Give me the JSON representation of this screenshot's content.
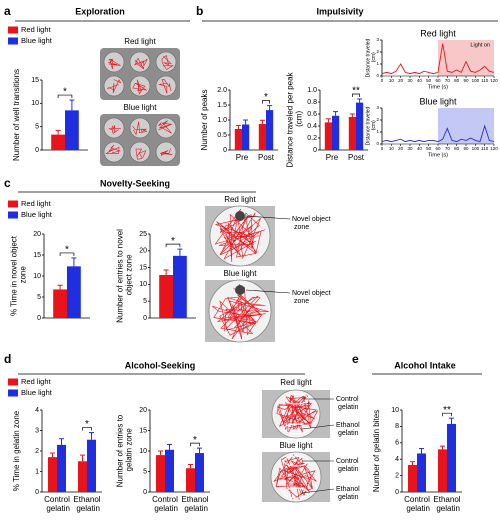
{
  "panels": [
    {
      "letter": "a",
      "title": "Exploration"
    },
    {
      "letter": "b",
      "title": "Impulsivity"
    },
    {
      "letter": "c",
      "title": "Novelty-Seeking"
    },
    {
      "letter": "d",
      "title": "Alcohol-Seeking"
    },
    {
      "letter": "e",
      "title": "Alcohol Intake"
    }
  ],
  "photos": [
    {
      "title": "Red light"
    },
    {
      "title": "Blue light"
    },
    {
      "title": "Red light",
      "labels": [
        "Novel object zone"
      ]
    },
    {
      "title": "Blue light",
      "labels": [
        "Novel object zone"
      ]
    },
    {
      "title": "Red light",
      "labels": [
        "Control gelatin",
        "Ethanol gelatin"
      ]
    },
    {
      "title": "Blue light",
      "labels": [
        "Control gelatin",
        "Ethanol gelatin"
      ]
    }
  ],
  "chart_data": [
    {
      "type": "bar",
      "ylabel": "Number of well transitions",
      "categories": [
        null
      ],
      "series": [
        {
          "name": "Red light",
          "color": "#e8141b",
          "values": [
            3.3
          ],
          "errors": [
            0.9
          ]
        },
        {
          "name": "Blue light",
          "color": "#1f2fe0",
          "values": [
            8.5
          ],
          "errors": [
            2.2
          ]
        }
      ],
      "significance": [
        "*"
      ],
      "ylim": [
        0,
        15
      ],
      "yticks": [
        0,
        5,
        10,
        15
      ]
    },
    {
      "type": "bar",
      "ylabel": "Number of peaks",
      "categories": [
        "Pre",
        "Post"
      ],
      "series": [
        {
          "color": "#e8141b",
          "values": [
            0.7,
            0.87
          ],
          "errors": [
            0.12,
            0.12
          ]
        },
        {
          "color": "#1f2fe0",
          "values": [
            0.85,
            1.33
          ],
          "errors": [
            0.15,
            0.15
          ]
        }
      ],
      "significance": [
        null,
        "*"
      ],
      "ylim": [
        0,
        2
      ],
      "yticks": [
        0,
        0.5,
        {
          "value": 1,
          "label": "1.0"
        },
        1.5,
        {
          "value": 2,
          "label": "2.0"
        }
      ]
    },
    {
      "type": "bar",
      "ylabel": "Distance traveled per peak (cm)",
      "categories": [
        "Pre",
        "Post"
      ],
      "series": [
        {
          "color": "#e8141b",
          "values": [
            0.46,
            0.55
          ],
          "errors": [
            0.06,
            0.05
          ]
        },
        {
          "color": "#1f2fe0",
          "values": [
            0.57,
            0.79
          ],
          "errors": [
            0.07,
            0.06
          ]
        }
      ],
      "significance": [
        null,
        "**"
      ],
      "ylim": [
        0,
        1
      ],
      "yticks": [
        0,
        0.2,
        0.4,
        0.6,
        0.8,
        {
          "value": 1,
          "label": "1.0"
        }
      ]
    },
    {
      "type": "line",
      "title": "Red light",
      "xlabel": "Time (s)",
      "ylabel": "Distance traveled (cm)",
      "x": [
        0,
        5,
        10,
        15,
        20,
        25,
        30,
        35,
        40,
        45,
        50,
        55,
        60,
        65,
        70,
        75,
        80,
        85,
        90,
        95,
        100,
        105,
        110,
        115,
        120
      ],
      "series": [
        {
          "color": "#e8141b",
          "values": [
            0.2,
            0.3,
            0.2,
            0.4,
            1.0,
            0.3,
            0.2,
            0.3,
            0.2,
            0.4,
            0.3,
            0.2,
            0.3,
            2.7,
            0.4,
            0.3,
            0.5,
            0.3,
            1.2,
            0.4,
            0.3,
            0.5,
            0.8,
            0.4,
            0.3
          ]
        }
      ],
      "highlight": {
        "x": [
          60,
          120
        ],
        "color": "#f7c8c8",
        "label": "Light on"
      },
      "xlim": [
        0,
        120
      ],
      "xticks": [
        0,
        10,
        20,
        30,
        40,
        50,
        60,
        70,
        80,
        90,
        100,
        110,
        120
      ],
      "ylim": [
        0,
        3
      ],
      "yticks": [
        0,
        1,
        2,
        3
      ]
    },
    {
      "type": "line",
      "title": "Blue light",
      "xlabel": "Time (s)",
      "ylabel": "Distance traveled (cm)",
      "x": [
        0,
        5,
        10,
        15,
        20,
        25,
        30,
        35,
        40,
        45,
        50,
        55,
        60,
        65,
        70,
        75,
        80,
        85,
        90,
        95,
        100,
        105,
        110,
        115,
        120
      ],
      "series": [
        {
          "color": "#1f2fe0",
          "values": [
            0.2,
            0.3,
            0.2,
            0.3,
            0.4,
            0.2,
            0.3,
            0.2,
            0.3,
            0.2,
            0.3,
            0.3,
            0.2,
            0.4,
            1.3,
            0.3,
            0.2,
            0.4,
            0.3,
            0.5,
            0.3,
            0.2,
            1.5,
            0.3,
            0.2
          ]
        }
      ],
      "highlight": {
        "x": [
          60,
          120
        ],
        "color": "#c4c8f4"
      },
      "xlim": [
        0,
        120
      ],
      "xticks": [
        0,
        10,
        20,
        30,
        40,
        50,
        60,
        70,
        80,
        90,
        100,
        110,
        120
      ],
      "ylim": [
        0,
        3
      ],
      "yticks": [
        0,
        1,
        2,
        3
      ]
    },
    {
      "type": "bar",
      "ylabel": "% Time in novel object zone",
      "categories": [
        null
      ],
      "series": [
        {
          "name": "Red light",
          "color": "#e8141b",
          "values": [
            6.8
          ],
          "errors": [
            1.0
          ]
        },
        {
          "name": "Blue light",
          "color": "#1f2fe0",
          "values": [
            12.3
          ],
          "errors": [
            2.0
          ]
        }
      ],
      "significance": [
        "*"
      ],
      "ylim": [
        0,
        20
      ],
      "yticks": [
        0,
        5,
        10,
        15,
        20
      ]
    },
    {
      "type": "bar",
      "ylabel": "Number of entries to novel object zone",
      "categories": [
        null
      ],
      "series": [
        {
          "color": "#e8141b",
          "values": [
            12.8
          ],
          "errors": [
            1.5
          ]
        },
        {
          "color": "#1f2fe0",
          "values": [
            18.5
          ],
          "errors": [
            2.0
          ]
        }
      ],
      "significance": [
        "*"
      ],
      "ylim": [
        0,
        25
      ],
      "yticks": [
        0,
        5,
        10,
        15,
        20,
        25
      ]
    },
    {
      "type": "bar",
      "ylabel": "% Time in gelatin zone",
      "categories": [
        "Control gelatin",
        "Ethanol gelatin"
      ],
      "series": [
        {
          "name": "Red light",
          "color": "#e8141b",
          "values": [
            1.7,
            1.5
          ],
          "errors": [
            0.2,
            0.3
          ]
        },
        {
          "name": "Blue light",
          "color": "#1f2fe0",
          "values": [
            2.3,
            2.55
          ],
          "errors": [
            0.3,
            0.35
          ]
        }
      ],
      "significance": [
        null,
        "*"
      ],
      "ylim": [
        0,
        4
      ],
      "yticks": [
        0,
        1,
        2,
        3,
        4
      ]
    },
    {
      "type": "bar",
      "ylabel": "Number of entries to gelatin zone",
      "categories": [
        "Control gelatin",
        "Ethanol gelatin"
      ],
      "series": [
        {
          "color": "#e8141b",
          "values": [
            9,
            5.8
          ],
          "errors": [
            1.0,
            0.9
          ]
        },
        {
          "color": "#1f2fe0",
          "values": [
            10.3,
            9.5
          ],
          "errors": [
            1.3,
            1.2
          ]
        }
      ],
      "significance": [
        null,
        "*"
      ],
      "ylim": [
        0,
        20
      ],
      "yticks": [
        0,
        5,
        10,
        15,
        20
      ]
    },
    {
      "type": "bar",
      "ylabel": "Number of gelatin bites",
      "categories": [
        "Control gelatin",
        "Ethanol gelatin"
      ],
      "series": [
        {
          "color": "#e8141b",
          "values": [
            3.3,
            5.2
          ],
          "errors": [
            0.4,
            0.4
          ]
        },
        {
          "color": "#1f2fe0",
          "values": [
            4.7,
            8.3
          ],
          "errors": [
            0.6,
            0.7
          ]
        }
      ],
      "significance": [
        null,
        "**"
      ],
      "ylim": [
        0,
        10
      ],
      "yticks": [
        0,
        2,
        4,
        6,
        8,
        10
      ]
    }
  ]
}
